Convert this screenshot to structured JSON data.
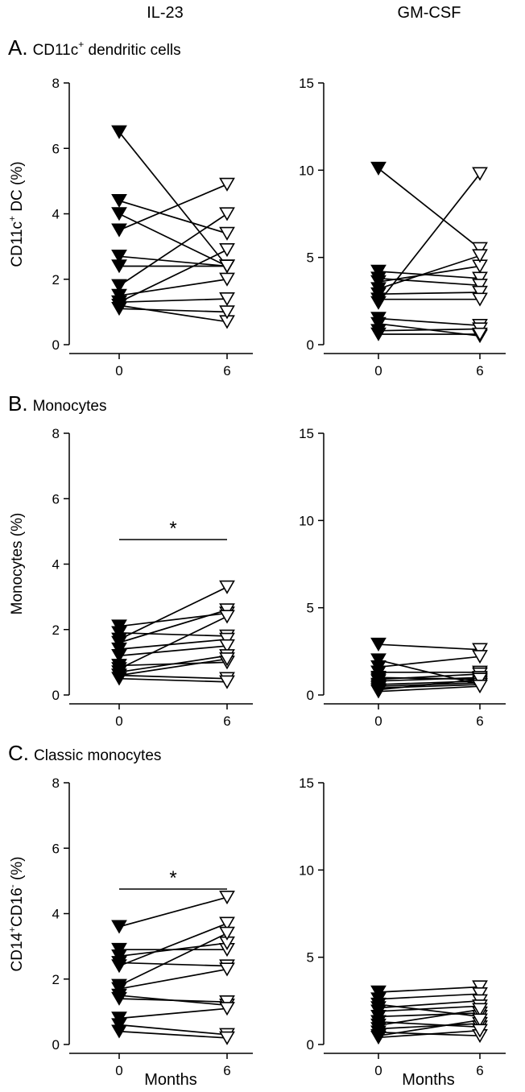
{
  "column_titles": [
    "IL-23",
    "GM-CSF"
  ],
  "panels": [
    {
      "letter": "A.",
      "title": "CD11c",
      "title_sup": "+",
      "title_rest": " dendritic cells"
    },
    {
      "letter": "B.",
      "title": "Monocytes",
      "title_sup": "",
      "title_rest": ""
    },
    {
      "letter": "C.",
      "title": "Classic monocytes",
      "title_sup": "",
      "title_rest": ""
    }
  ],
  "ylabels": [
    {
      "text": "CD11c",
      "sup": "+",
      "rest": " DC (%)"
    },
    {
      "text": "Monocytes (%)",
      "sup": "",
      "rest": ""
    },
    {
      "text": "CD14",
      "sup": "+",
      "mid": "CD16",
      "sup2": "-",
      "rest": " (%)"
    }
  ],
  "xlabel": "Months",
  "colors": {
    "line": "#000000",
    "filled_marker": "#000000",
    "open_marker_fill": "#ffffff"
  },
  "marker_legend": {
    "month_0": "filled down-triangle",
    "month_6": "open down-triangle"
  },
  "chart_data": [
    {
      "type": "line",
      "panel": "A",
      "column": "IL-23",
      "x": [
        0,
        6
      ],
      "xticks": [
        "0",
        "6"
      ],
      "ylim": [
        0,
        8
      ],
      "yticks": [
        0,
        2,
        4,
        6,
        8
      ],
      "series": [
        {
          "values": [
            6.5,
            2.4
          ]
        },
        {
          "values": [
            4.4,
            3.4
          ]
        },
        {
          "values": [
            4.0,
            2.4
          ]
        },
        {
          "values": [
            3.5,
            4.9
          ]
        },
        {
          "values": [
            2.7,
            2.4
          ]
        },
        {
          "values": [
            2.4,
            2.4
          ]
        },
        {
          "values": [
            1.8,
            4.0
          ]
        },
        {
          "values": [
            1.5,
            2.0
          ]
        },
        {
          "values": [
            1.3,
            2.9
          ]
        },
        {
          "values": [
            1.3,
            1.4
          ]
        },
        {
          "values": [
            1.2,
            0.7
          ]
        },
        {
          "values": [
            1.1,
            1.0
          ]
        }
      ],
      "significance": ""
    },
    {
      "type": "line",
      "panel": "A",
      "column": "GM-CSF",
      "x": [
        0,
        6
      ],
      "xticks": [
        "0",
        "6"
      ],
      "ylim": [
        0,
        15
      ],
      "yticks": [
        0,
        5,
        10,
        15
      ],
      "series": [
        {
          "values": [
            10.1,
            5.5
          ]
        },
        {
          "values": [
            4.2,
            3.8
          ]
        },
        {
          "values": [
            3.8,
            3.4
          ]
        },
        {
          "values": [
            3.6,
            4.5
          ]
        },
        {
          "values": [
            3.2,
            5.1
          ]
        },
        {
          "values": [
            2.9,
            3.0
          ]
        },
        {
          "values": [
            2.6,
            2.6
          ]
        },
        {
          "values": [
            2.4,
            9.8
          ]
        },
        {
          "values": [
            1.5,
            1.1
          ]
        },
        {
          "values": [
            1.2,
            0.5
          ]
        },
        {
          "values": [
            0.8,
            0.9
          ]
        },
        {
          "values": [
            0.6,
            0.6
          ]
        }
      ],
      "significance": ""
    },
    {
      "type": "line",
      "panel": "B",
      "column": "IL-23",
      "x": [
        0,
        6
      ],
      "xticks": [
        "0",
        "6"
      ],
      "ylim": [
        0,
        8
      ],
      "yticks": [
        0,
        2,
        4,
        6,
        8
      ],
      "series": [
        {
          "values": [
            2.1,
            2.5
          ]
        },
        {
          "values": [
            1.9,
            1.8
          ]
        },
        {
          "values": [
            1.7,
            3.3
          ]
        },
        {
          "values": [
            1.6,
            2.6
          ]
        },
        {
          "values": [
            1.4,
            1.7
          ]
        },
        {
          "values": [
            1.2,
            1.5
          ]
        },
        {
          "values": [
            0.9,
            1.0
          ]
        },
        {
          "values": [
            0.8,
            2.4
          ]
        },
        {
          "values": [
            0.7,
            1.2
          ]
        },
        {
          "values": [
            0.6,
            1.1
          ]
        },
        {
          "values": [
            0.6,
            0.5
          ]
        },
        {
          "values": [
            0.5,
            0.4
          ]
        }
      ],
      "significance": "*"
    },
    {
      "type": "line",
      "panel": "B",
      "column": "GM-CSF",
      "x": [
        0,
        6
      ],
      "xticks": [
        "0",
        "6"
      ],
      "ylim": [
        0,
        15
      ],
      "yticks": [
        0,
        5,
        10,
        15
      ],
      "series": [
        {
          "values": [
            2.9,
            2.6
          ]
        },
        {
          "values": [
            2.0,
            0.6
          ]
        },
        {
          "values": [
            1.6,
            2.2
          ]
        },
        {
          "values": [
            1.3,
            1.3
          ]
        },
        {
          "values": [
            1.0,
            0.9
          ]
        },
        {
          "values": [
            0.9,
            1.2
          ]
        },
        {
          "values": [
            0.8,
            1.0
          ]
        },
        {
          "values": [
            0.6,
            0.8
          ]
        },
        {
          "values": [
            0.5,
            0.7
          ]
        },
        {
          "values": [
            0.4,
            0.6
          ]
        },
        {
          "values": [
            0.3,
            0.9
          ]
        },
        {
          "values": [
            0.2,
            0.5
          ]
        }
      ],
      "significance": ""
    },
    {
      "type": "line",
      "panel": "C",
      "column": "IL-23",
      "x": [
        0,
        6
      ],
      "xticks": [
        "0",
        "6"
      ],
      "ylim": [
        0,
        8
      ],
      "yticks": [
        0,
        2,
        4,
        6,
        8
      ],
      "series": [
        {
          "values": [
            3.6,
            4.5
          ]
        },
        {
          "values": [
            2.9,
            2.9
          ]
        },
        {
          "values": [
            2.7,
            3.1
          ]
        },
        {
          "values": [
            2.5,
            2.4
          ]
        },
        {
          "values": [
            2.4,
            3.7
          ]
        },
        {
          "values": [
            1.8,
            3.4
          ]
        },
        {
          "values": [
            1.7,
            2.3
          ]
        },
        {
          "values": [
            1.5,
            1.2
          ]
        },
        {
          "values": [
            1.4,
            1.3
          ]
        },
        {
          "values": [
            0.8,
            1.1
          ]
        },
        {
          "values": [
            0.6,
            0.3
          ]
        },
        {
          "values": [
            0.4,
            0.2
          ]
        }
      ],
      "significance": "*"
    },
    {
      "type": "line",
      "panel": "C",
      "column": "GM-CSF",
      "x": [
        0,
        6
      ],
      "xticks": [
        "0",
        "6"
      ],
      "ylim": [
        0,
        15
      ],
      "yticks": [
        0,
        5,
        10,
        15
      ],
      "series": [
        {
          "values": [
            3.0,
            3.3
          ]
        },
        {
          "values": [
            2.6,
            2.9
          ]
        },
        {
          "values": [
            2.3,
            1.6
          ]
        },
        {
          "values": [
            2.1,
            2.5
          ]
        },
        {
          "values": [
            1.9,
            2.2
          ]
        },
        {
          "values": [
            1.6,
            1.8
          ]
        },
        {
          "values": [
            1.3,
            1.0
          ]
        },
        {
          "values": [
            1.1,
            2.0
          ]
        },
        {
          "values": [
            0.9,
            1.2
          ]
        },
        {
          "values": [
            0.7,
            0.5
          ]
        },
        {
          "values": [
            0.5,
            1.4
          ]
        },
        {
          "values": [
            0.4,
            0.8
          ]
        }
      ],
      "significance": ""
    }
  ]
}
